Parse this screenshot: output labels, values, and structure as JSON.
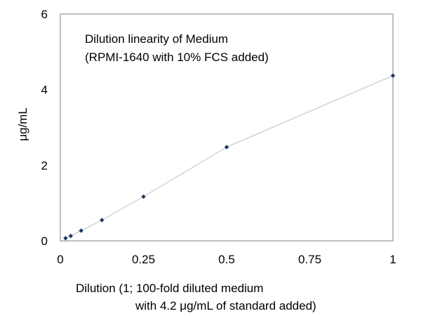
{
  "chart_data": {
    "type": "scatter",
    "annotation": [
      "Dilution linearity of Medium",
      "(RPMI-1640 with 10% FCS added)"
    ],
    "xlabel": [
      "Dilution (1; 100-fold diluted medium",
      "with 4.2 μg/mL of standard added)"
    ],
    "ylabel": "μg/mL",
    "xlim": [
      0,
      1
    ],
    "ylim": [
      0,
      6
    ],
    "x_ticks": [
      "0",
      "0.25",
      "0.5",
      "0.75",
      "1"
    ],
    "y_ticks": [
      "0",
      "2",
      "4",
      "6"
    ],
    "grid": false,
    "legend": "none",
    "series": [
      {
        "x": [
          0.015625,
          0.03125,
          0.0625,
          0.125,
          0.25,
          0.5,
          1
        ],
        "y": [
          0.07,
          0.13,
          0.27,
          0.55,
          1.17,
          2.48,
          4.37
        ],
        "marker": "diamond",
        "line": true
      }
    ],
    "colors": {
      "marker": "#1f3864",
      "line": "#c0c0c0",
      "axis": "#808080"
    }
  }
}
